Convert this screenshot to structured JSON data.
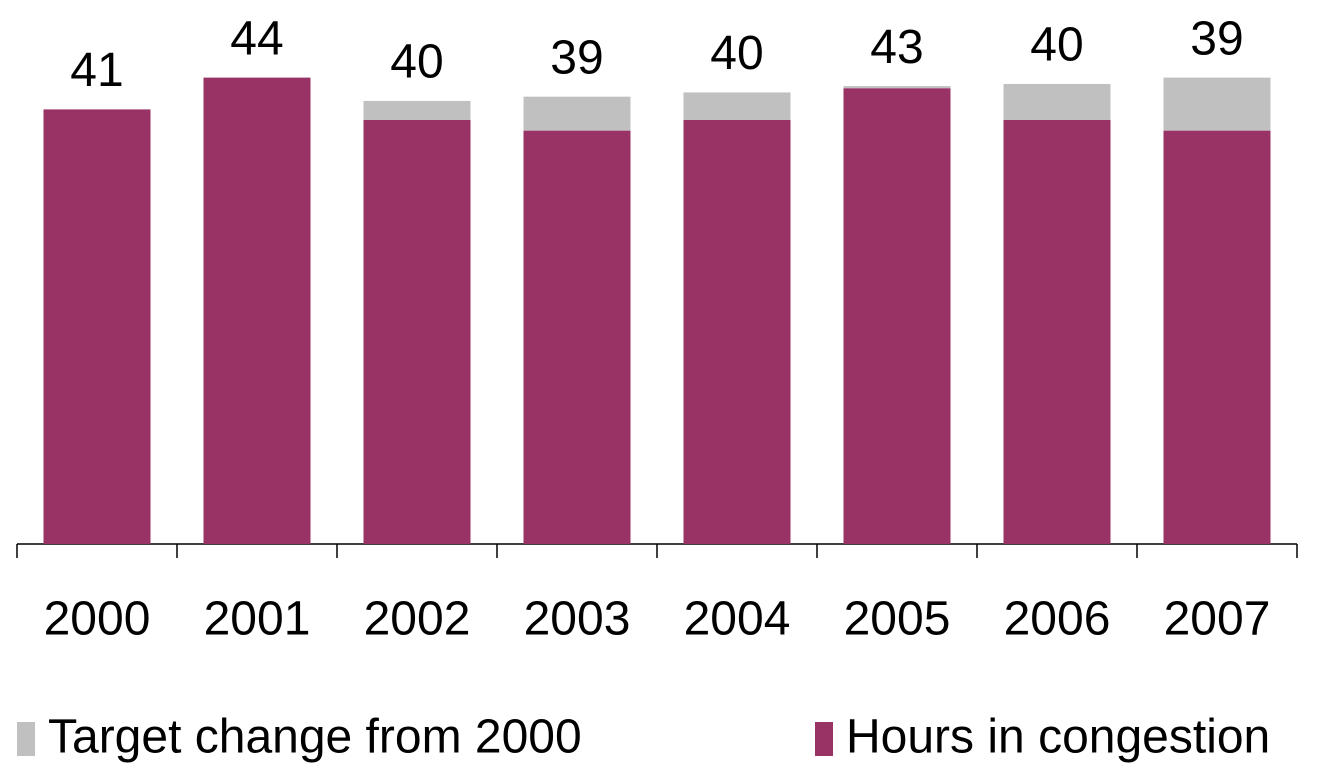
{
  "chart_data": {
    "type": "stacked_bar",
    "categories": [
      "2000",
      "2001",
      "2002",
      "2003",
      "2004",
      "2005",
      "2006",
      "2007"
    ],
    "series": [
      {
        "name": "Target change from 2000",
        "color": "#c0c0c0",
        "values": [
          0,
          0,
          1.8,
          3.2,
          2.6,
          0.2,
          3.4,
          5.0
        ]
      },
      {
        "name": "Hours in congestion",
        "color": "#993366",
        "values": [
          41,
          44,
          40,
          39,
          40,
          43,
          40,
          39
        ]
      }
    ],
    "value_label_series": 1,
    "ylim": [
      0,
      50
    ],
    "grid": false
  }
}
